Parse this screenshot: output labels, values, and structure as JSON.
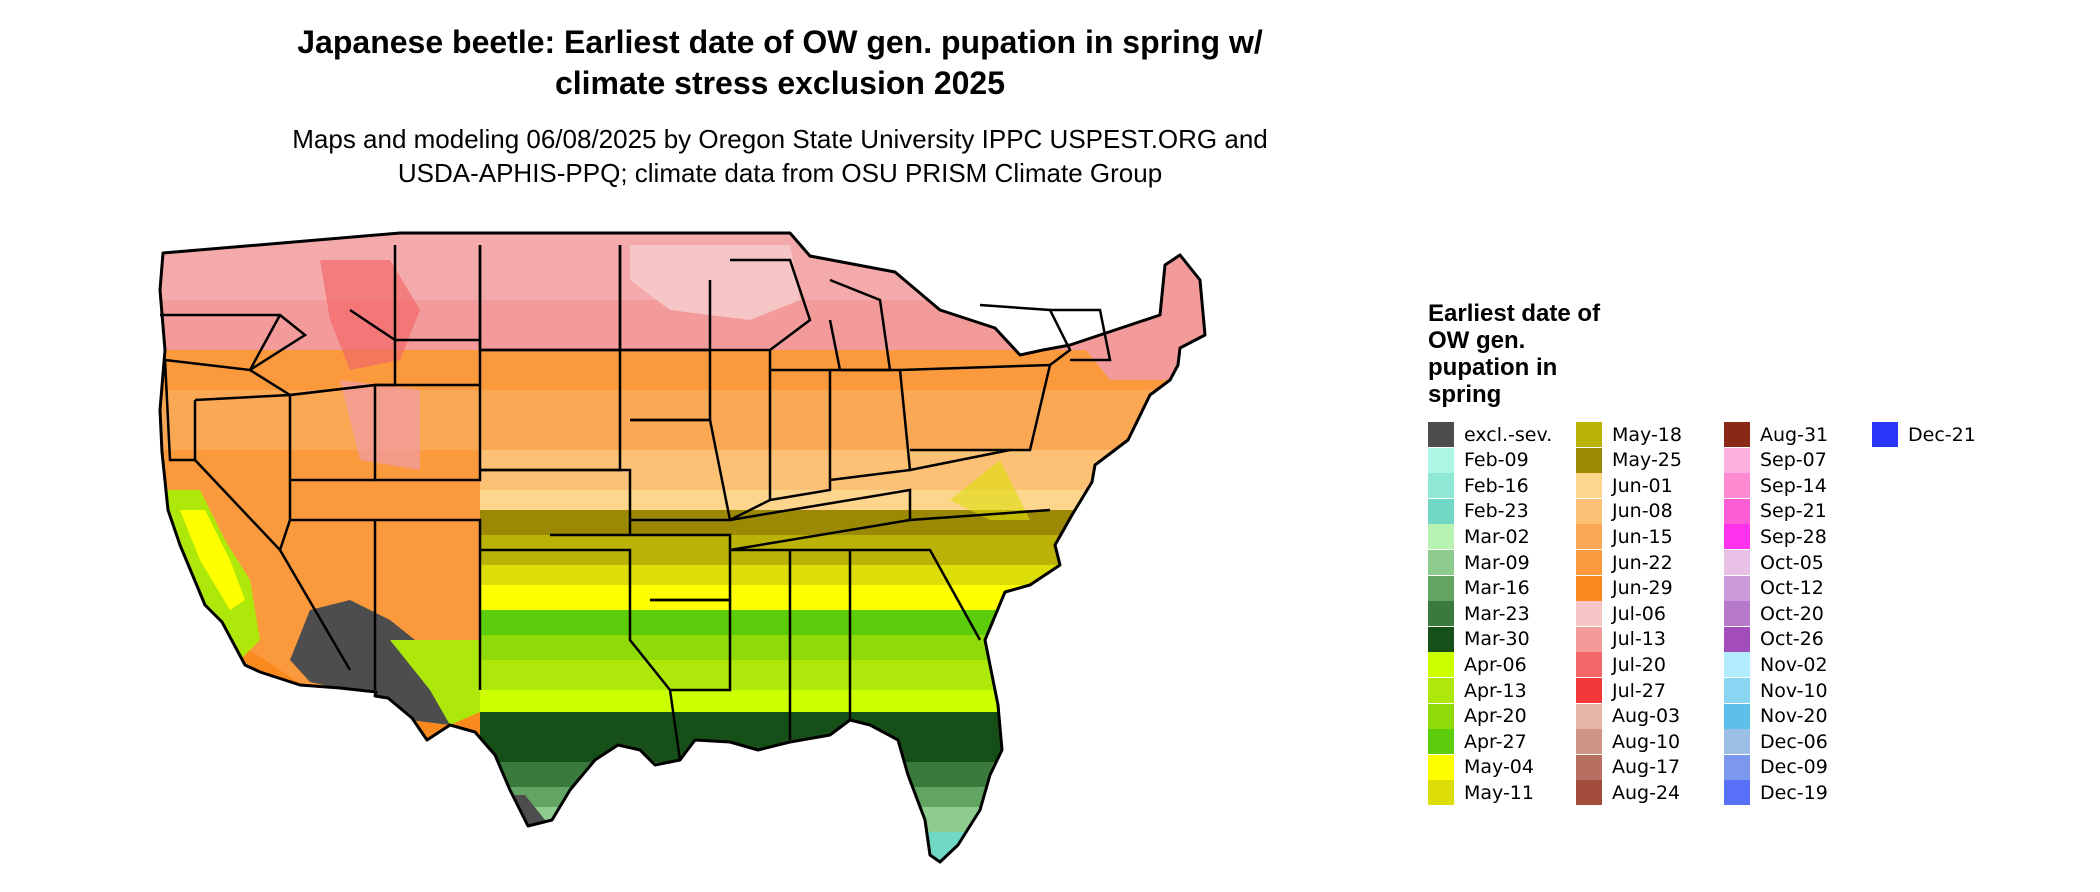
{
  "title_line1": "Japanese beetle: Earliest date of OW gen. pupation in spring w/",
  "title_line2": "climate stress exclusion 2025",
  "subtitle_line1": "Maps and modeling 06/08/2025 by Oregon State University IPPC USPEST.ORG and",
  "subtitle_line2": "USDA-APHIS-PPQ; climate data from OSU PRISM Climate Group",
  "legend": {
    "title": "Earliest date of OW gen. pupation in spring",
    "items": [
      {
        "label": "excl.-sev.",
        "color": "#4d4d4d"
      },
      {
        "label": "Feb-09",
        "color": "#aef6e4"
      },
      {
        "label": "Feb-16",
        "color": "#8fe8d3"
      },
      {
        "label": "Feb-23",
        "color": "#71d8c6"
      },
      {
        "label": "Mar-02",
        "color": "#b7f2b3"
      },
      {
        "label": "Mar-09",
        "color": "#8dcc8d"
      },
      {
        "label": "Mar-16",
        "color": "#62a562"
      },
      {
        "label": "Mar-23",
        "color": "#3a7a3d"
      },
      {
        "label": "Mar-30",
        "color": "#165018"
      },
      {
        "label": "Apr-06",
        "color": "#ccff00"
      },
      {
        "label": "Apr-13",
        "color": "#aee80a"
      },
      {
        "label": "Apr-20",
        "color": "#8fdb0a"
      },
      {
        "label": "Apr-27",
        "color": "#5ccd0a"
      },
      {
        "label": "May-04",
        "color": "#ffff00"
      },
      {
        "label": "May-11",
        "color": "#dddd08"
      },
      {
        "label": "May-18",
        "color": "#bbb208"
      },
      {
        "label": "May-25",
        "color": "#9b8906"
      },
      {
        "label": "Jun-01",
        "color": "#fdd58c"
      },
      {
        "label": "Jun-08",
        "color": "#fcc174"
      },
      {
        "label": "Jun-15",
        "color": "#fba854"
      },
      {
        "label": "Jun-22",
        "color": "#fb9a3c"
      },
      {
        "label": "Jun-29",
        "color": "#fa8a1e"
      },
      {
        "label": "Jul-06",
        "color": "#f6c6c6"
      },
      {
        "label": "Jul-13",
        "color": "#f39b9b"
      },
      {
        "label": "Jul-20",
        "color": "#f26868"
      },
      {
        "label": "Jul-27",
        "color": "#f23838"
      },
      {
        "label": "Aug-03",
        "color": "#e8b6a8"
      },
      {
        "label": "Aug-10",
        "color": "#cf9483"
      },
      {
        "label": "Aug-17",
        "color": "#b76f61"
      },
      {
        "label": "Aug-24",
        "color": "#a14c3c"
      },
      {
        "label": "Aug-31",
        "color": "#8a2716"
      },
      {
        "label": "Sep-07",
        "color": "#ffb0dd"
      },
      {
        "label": "Sep-14",
        "color": "#ff8ad2"
      },
      {
        "label": "Sep-21",
        "color": "#ff5dd5"
      },
      {
        "label": "Sep-28",
        "color": "#ff33ee"
      },
      {
        "label": "Oct-05",
        "color": "#e8c0e6"
      },
      {
        "label": "Oct-12",
        "color": "#cc99d9"
      },
      {
        "label": "Oct-20",
        "color": "#b77acb"
      },
      {
        "label": "Oct-26",
        "color": "#a24dba"
      },
      {
        "label": "Nov-02",
        "color": "#b0ecfd"
      },
      {
        "label": "Nov-10",
        "color": "#88d6f2"
      },
      {
        "label": "Nov-20",
        "color": "#5cc0ea"
      },
      {
        "label": "Dec-06",
        "color": "#9cbfe6"
      },
      {
        "label": "Dec-09",
        "color": "#7c98ee"
      },
      {
        "label": "Dec-19",
        "color": "#5870f8"
      },
      {
        "label": "Dec-21",
        "color": "#2a36f8"
      }
    ]
  }
}
